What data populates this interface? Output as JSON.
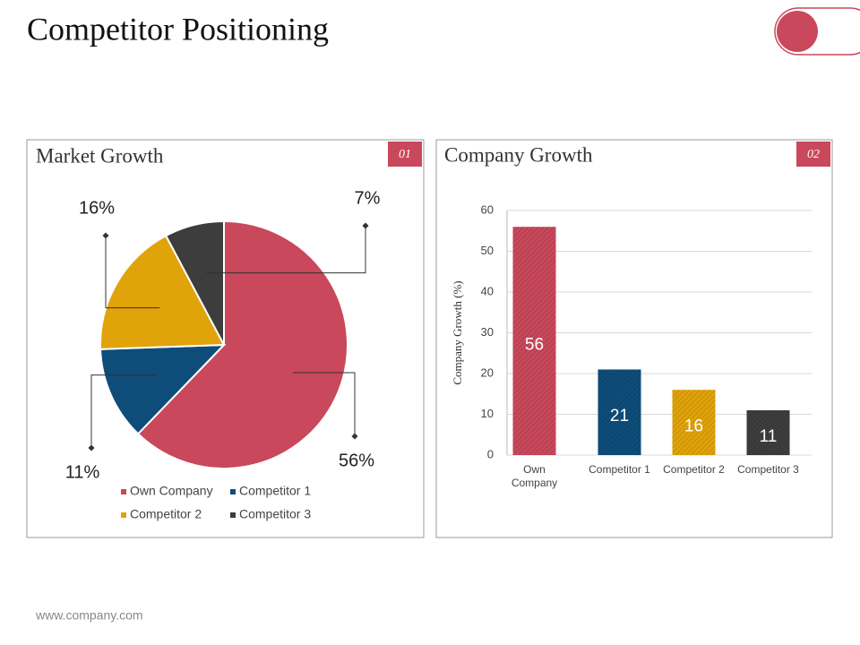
{
  "header": {
    "title": "Competitor Positioning"
  },
  "footer": {
    "text": "www.company.com"
  },
  "chart_data": [
    {
      "type": "pie",
      "title": "Market Growth",
      "badge": "01",
      "categories": [
        "Own Company",
        "Competitor 1",
        "Competitor 2",
        "Competitor 3"
      ],
      "values": [
        56,
        11,
        16,
        7
      ],
      "value_labels": [
        "56%",
        "11%",
        "16%",
        "7%"
      ],
      "colors": [
        "#c9485b",
        "#0e4d7a",
        "#e0a30a",
        "#3d3d3d"
      ],
      "legend": "bottom"
    },
    {
      "type": "bar",
      "title": "Company Growth",
      "badge": "02",
      "categories": [
        "Own Company",
        "Competitor 1",
        "Competitor 2",
        "Competitor 3"
      ],
      "values": [
        56,
        21,
        16,
        11
      ],
      "colors": [
        "#c9485b",
        "#0e4d7a",
        "#e0a30a",
        "#3d3d3d"
      ],
      "ylabel": "Company Growth (%)",
      "ylim": [
        0,
        60
      ],
      "yticks": [
        0,
        10,
        20,
        30,
        40,
        50,
        60
      ],
      "grid": true
    }
  ]
}
